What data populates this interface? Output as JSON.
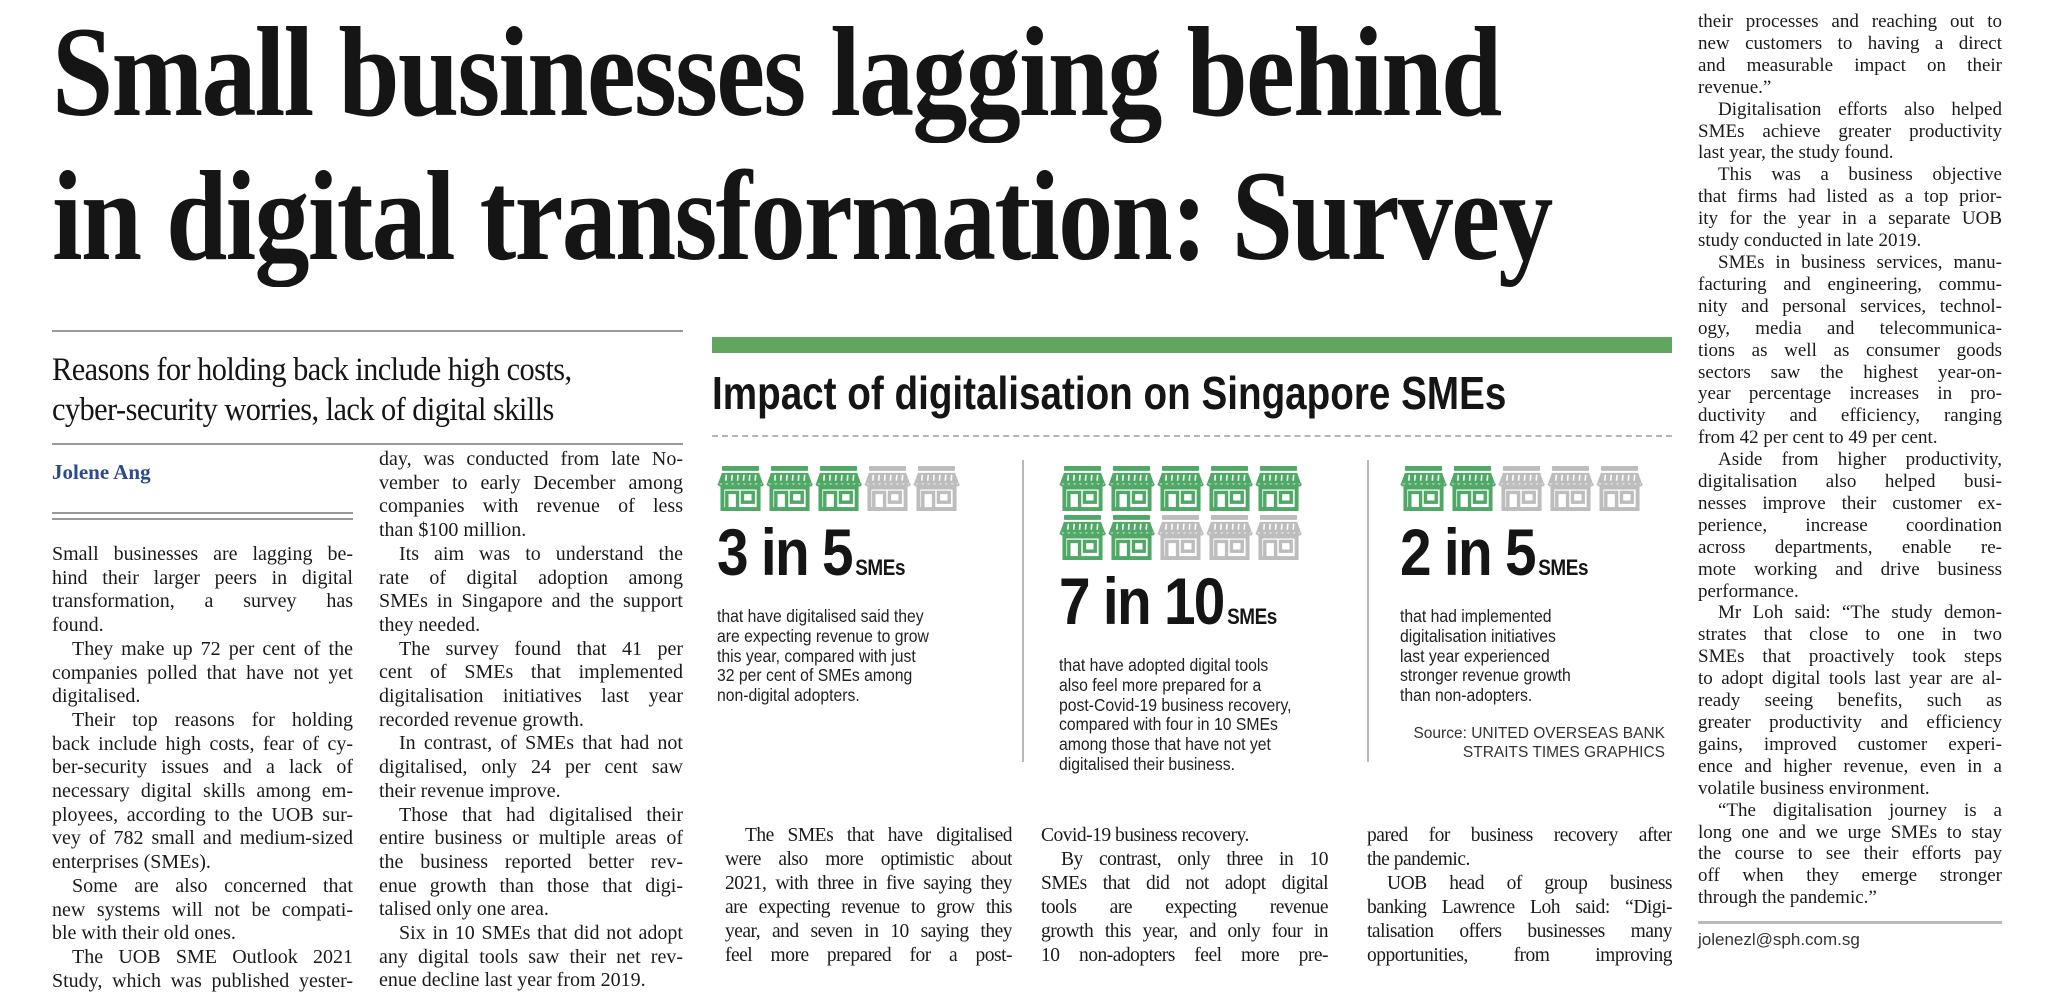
{
  "article": {
    "headline": [
      "Small businesses lagging behind",
      "in digital transformation: Survey"
    ],
    "subhead": [
      "Reasons for holding back include high costs,",
      "cyber-security worries, lack of digital skills"
    ],
    "byline": "Jolene Ang",
    "email": "jolenezl@sph.com.sg",
    "columns": {
      "col1": [
        {
          "indent": false,
          "lines": [
            "Small businesses are lagging be-",
            "hind their larger peers in digital",
            "transformation, a survey has",
            "found."
          ]
        },
        {
          "indent": true,
          "lines": [
            "They make up 72 per cent of the",
            "companies polled that have not yet",
            "digitalised."
          ]
        },
        {
          "indent": true,
          "lines": [
            "Their top reasons for holding",
            "back include high costs, fear of cy-",
            "ber-security issues and a lack of",
            "necessary digital skills among em-",
            "ployees, according to the UOB sur-",
            "vey of 782 small and medium-sized",
            "enterprises (SMEs)."
          ]
        },
        {
          "indent": true,
          "lines": [
            "Some are also concerned that",
            "new systems will not be compati-",
            "ble with their old ones."
          ]
        },
        {
          "indent": true,
          "continues": true,
          "lines": [
            "The UOB SME Outlook 2021",
            "Study, which was published yester-"
          ]
        }
      ],
      "col2": [
        {
          "indent": false,
          "lines": [
            "day, was conducted from late No-",
            "vember to early December among",
            "companies with revenue of less",
            "than $100 million."
          ]
        },
        {
          "indent": true,
          "lines": [
            "Its aim was to understand the",
            "rate of digital adoption among",
            "SMEs in Singapore and the support",
            "they needed."
          ]
        },
        {
          "indent": true,
          "lines": [
            "The survey found that 41 per",
            "cent of SMEs that implemented",
            "digitalisation initiatives last year",
            "recorded revenue growth."
          ]
        },
        {
          "indent": true,
          "lines": [
            "In contrast, of SMEs that had not",
            "digitalised, only 24 per cent saw",
            "their revenue improve."
          ]
        },
        {
          "indent": true,
          "lines": [
            "Those that had digitalised their",
            "entire business or multiple areas of",
            "the business reported better rev-",
            "enue growth than those that digi-",
            "talised only one area."
          ]
        },
        {
          "indent": true,
          "lines": [
            "Six in 10 SMEs that did not adopt",
            "any digital tools saw their net rev-",
            "enue decline last year from 2019."
          ]
        }
      ],
      "col3": [
        {
          "indent": true,
          "continues": true,
          "lines": [
            "The SMEs that have digitalised",
            "were also more optimistic about",
            "2021, with three in five saying they",
            "are expecting revenue to grow this",
            "year, and seven in 10 saying they",
            "feel more prepared for a post-"
          ]
        }
      ],
      "col4": [
        {
          "indent": false,
          "lines": [
            "Covid-19 business recovery."
          ]
        },
        {
          "indent": true,
          "continues": true,
          "lines": [
            "By contrast, only three in 10",
            "SMEs that did not adopt digital",
            "tools are expecting revenue",
            "growth this year, and only four in",
            "10 non-adopters feel more pre-"
          ]
        }
      ],
      "col5": [
        {
          "indent": false,
          "lines": [
            "pared for business recovery after",
            "the pandemic."
          ]
        },
        {
          "indent": true,
          "continues": true,
          "lines": [
            "UOB head of group business",
            "banking Lawrence Loh said: “Digi-",
            "talisation offers businesses many",
            "opportunities, from improving"
          ]
        }
      ],
      "col6": [
        {
          "indent": false,
          "lines": [
            "their processes and reaching out to",
            "new customers to having a direct",
            "and measurable impact on their",
            "revenue.”"
          ]
        },
        {
          "indent": true,
          "lines": [
            "Digitalisation efforts also helped",
            "SMEs achieve greater productivity",
            "last year, the study found."
          ]
        },
        {
          "indent": true,
          "lines": [
            "This was a business objective",
            "that firms had listed as a top prior-",
            "ity for the year in a separate UOB",
            "study conducted in late 2019."
          ]
        },
        {
          "indent": true,
          "lines": [
            "SMEs in business services, manu-",
            "facturing and engineering, commu-",
            "nity and personal services, technol-",
            "ogy, media and telecommunica-",
            "tions as well as consumer goods",
            "sectors saw the highest year-on-",
            "year percentage increases in pro-",
            "ductivity and efficiency, ranging",
            "from 42 per cent to 49 per cent."
          ]
        },
        {
          "indent": true,
          "lines": [
            "Aside from higher productivity,",
            "digitalisation also helped busi-",
            "nesses improve their customer ex-",
            "perience, increase coordination",
            "across departments, enable re-",
            "mote working and drive business",
            "performance."
          ]
        },
        {
          "indent": true,
          "lines": [
            "Mr Loh said: “The study demon-",
            "strates that close to one in two",
            "SMEs that proactively took steps",
            "to adopt digital tools last year are al-",
            "ready seeing benefits, such as",
            "greater productivity and efficiency",
            "gains, improved customer experi-",
            "ence and higher revenue, even in a",
            "volatile business environment."
          ]
        },
        {
          "indent": true,
          "lines": [
            "“The digitalisation journey is a",
            "long one and we urge SMEs to stay",
            "the course to see their efforts pay",
            "off when they emerge stronger",
            "through the pandemic.”"
          ]
        }
      ]
    }
  },
  "infographic": {
    "title": "Impact of digitalisation on Singapore SMEs",
    "colors": {
      "accent": "#62a55e",
      "icon_filled": "#4fa866",
      "icon_empty": "#bdbdbd"
    },
    "icon": "storefront-icon",
    "panels": [
      {
        "filled": 3,
        "total": 5,
        "stat": "3 in 5",
        "unit": "SMEs",
        "desc": [
          "that have digitalised said they",
          "are expecting revenue to grow",
          "this year, compared with just",
          "32 per cent of SMEs among",
          "non-digital adopters."
        ]
      },
      {
        "filled": 7,
        "total": 10,
        "stat": "7 in 10",
        "unit": "SMEs",
        "desc": [
          "that have adopted digital tools",
          "also feel more prepared for a",
          "post-Covid-19 business recovery,",
          "compared with four in 10 SMEs",
          "among those that have not yet",
          "digitalised their business."
        ]
      },
      {
        "filled": 2,
        "total": 5,
        "stat": "2 in 5",
        "unit": "SMEs",
        "desc": [
          "that had implemented",
          "digitalisation initiatives",
          "last year experienced",
          "stronger revenue growth",
          "than non-adopters."
        ]
      }
    ],
    "source": [
      "Source: UNITED OVERSEAS BANK",
      "STRAITS TIMES GRAPHICS"
    ]
  }
}
